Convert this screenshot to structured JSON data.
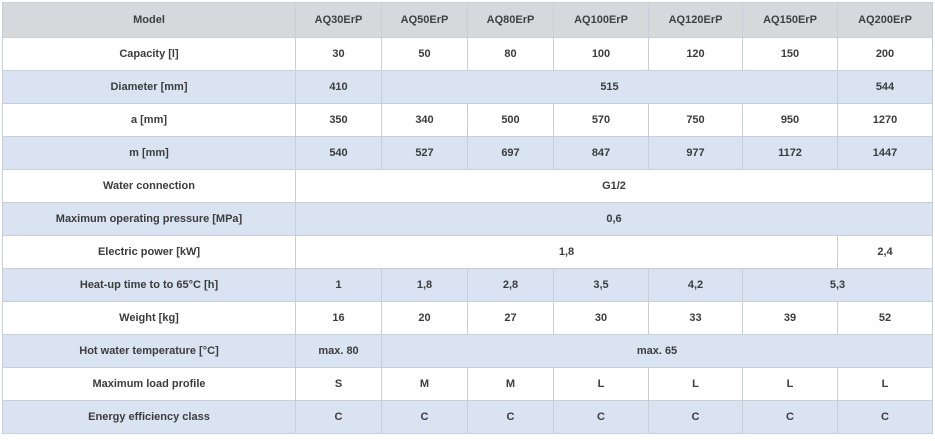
{
  "header": [
    "Model",
    "AQ30ErP",
    "AQ50ErP",
    "AQ80ErP",
    "AQ100ErP",
    "AQ120ErP",
    "AQ150ErP",
    "AQ200ErP"
  ],
  "rows": [
    {
      "label": "Capacity [l]",
      "cells": [
        {
          "v": "30",
          "span": 1
        },
        {
          "v": "50",
          "span": 1
        },
        {
          "v": "80",
          "span": 1
        },
        {
          "v": "100",
          "span": 1
        },
        {
          "v": "120",
          "span": 1
        },
        {
          "v": "150",
          "span": 1
        },
        {
          "v": "200",
          "span": 1
        }
      ]
    },
    {
      "label": "Diameter [mm]",
      "cells": [
        {
          "v": "410",
          "span": 1
        },
        {
          "v": "515",
          "span": 5
        },
        {
          "v": "544",
          "span": 1
        }
      ]
    },
    {
      "label": "a [mm]",
      "cells": [
        {
          "v": "350",
          "span": 1
        },
        {
          "v": "340",
          "span": 1
        },
        {
          "v": "500",
          "span": 1
        },
        {
          "v": "570",
          "span": 1
        },
        {
          "v": "750",
          "span": 1
        },
        {
          "v": "950",
          "span": 1
        },
        {
          "v": "1270",
          "span": 1
        }
      ]
    },
    {
      "label": "m [mm]",
      "cells": [
        {
          "v": "540",
          "span": 1
        },
        {
          "v": "527",
          "span": 1
        },
        {
          "v": "697",
          "span": 1
        },
        {
          "v": "847",
          "span": 1
        },
        {
          "v": "977",
          "span": 1
        },
        {
          "v": "1172",
          "span": 1
        },
        {
          "v": "1447",
          "span": 1
        }
      ]
    },
    {
      "label": "Water connection",
      "cells": [
        {
          "v": "G1/2",
          "span": 7
        }
      ]
    },
    {
      "label": "Maximum operating pressure [MPa]",
      "cells": [
        {
          "v": "0,6",
          "span": 7
        }
      ]
    },
    {
      "label": "Electric power [kW]",
      "cells": [
        {
          "v": "1,8",
          "span": 6
        },
        {
          "v": "2,4",
          "span": 1
        }
      ]
    },
    {
      "label": "Heat-up time to to 65°C [h]",
      "cells": [
        {
          "v": "1",
          "span": 1
        },
        {
          "v": "1,8",
          "span": 1
        },
        {
          "v": "2,8",
          "span": 1
        },
        {
          "v": "3,5",
          "span": 1
        },
        {
          "v": "4,2",
          "span": 1
        },
        {
          "v": "5,3",
          "span": 2
        }
      ]
    },
    {
      "label": "Weight [kg]",
      "cells": [
        {
          "v": "16",
          "span": 1
        },
        {
          "v": "20",
          "span": 1
        },
        {
          "v": "27",
          "span": 1
        },
        {
          "v": "30",
          "span": 1
        },
        {
          "v": "33",
          "span": 1
        },
        {
          "v": "39",
          "span": 1
        },
        {
          "v": "52",
          "span": 1
        }
      ]
    },
    {
      "label": "Hot water temperature [°C]",
      "cells": [
        {
          "v": "max. 80",
          "span": 1
        },
        {
          "v": "max. 65",
          "span": 6
        }
      ]
    },
    {
      "label": "Maximum load profile",
      "cells": [
        {
          "v": "S",
          "span": 1
        },
        {
          "v": "M",
          "span": 1
        },
        {
          "v": "M",
          "span": 1
        },
        {
          "v": "L",
          "span": 1
        },
        {
          "v": "L",
          "span": 1
        },
        {
          "v": "L",
          "span": 1
        },
        {
          "v": "L",
          "span": 1
        }
      ]
    },
    {
      "label": "Energy efficiency class",
      "cells": [
        {
          "v": "C",
          "span": 1
        },
        {
          "v": "C",
          "span": 1
        },
        {
          "v": "C",
          "span": 1
        },
        {
          "v": "C",
          "span": 1
        },
        {
          "v": "C",
          "span": 1
        },
        {
          "v": "C",
          "span": 1
        },
        {
          "v": "C",
          "span": 1
        }
      ]
    }
  ]
}
